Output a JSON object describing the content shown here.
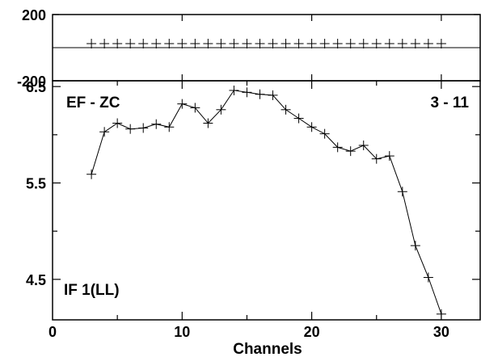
{
  "chart_data": [
    {
      "type": "scatter",
      "panel": "phase",
      "ylim": [
        -200,
        200
      ],
      "yticks": [
        "200",
        "-200"
      ],
      "xlim": [
        0,
        33
      ],
      "grid": false,
      "series": [
        {
          "marker": "+",
          "line": false,
          "points": [
            {
              "x": 3,
              "y": 0
            },
            {
              "x": 4,
              "y": 0
            },
            {
              "x": 5,
              "y": 0
            },
            {
              "x": 6,
              "y": 0
            },
            {
              "x": 7,
              "y": 0
            },
            {
              "x": 8,
              "y": 0
            },
            {
              "x": 9,
              "y": 0
            },
            {
              "x": 10,
              "y": 0
            },
            {
              "x": 11,
              "y": 0
            },
            {
              "x": 12,
              "y": 0
            },
            {
              "x": 13,
              "y": 0
            },
            {
              "x": 14,
              "y": 0
            },
            {
              "x": 15,
              "y": 0
            },
            {
              "x": 16,
              "y": 0
            },
            {
              "x": 17,
              "y": 0
            },
            {
              "x": 18,
              "y": 0
            },
            {
              "x": 19,
              "y": 0
            },
            {
              "x": 20,
              "y": 0
            },
            {
              "x": 21,
              "y": 0
            },
            {
              "x": 22,
              "y": 0
            },
            {
              "x": 23,
              "y": 0
            },
            {
              "x": 24,
              "y": 0
            },
            {
              "x": 25,
              "y": 0
            },
            {
              "x": 26,
              "y": 0
            },
            {
              "x": 27,
              "y": 0
            },
            {
              "x": 28,
              "y": 0
            },
            {
              "x": 29,
              "y": 0
            },
            {
              "x": 30,
              "y": 0
            }
          ]
        }
      ]
    },
    {
      "type": "line",
      "panel": "amplitude",
      "xlim": [
        0,
        33
      ],
      "ylim": [
        4.08,
        6.56
      ],
      "xticks": [
        "0",
        "10",
        "20",
        "30"
      ],
      "yticks": [
        "6.5",
        "5.5",
        "4.5"
      ],
      "xlabel": "Channels",
      "ylabel": "",
      "grid": false,
      "annotations": {
        "top_left": "EF - ZC",
        "top_right": "3 - 11",
        "bottom_left": "IF 1(LL)"
      },
      "series": [
        {
          "marker": "+",
          "line": true,
          "points": [
            {
              "x": 3,
              "y": 5.59
            },
            {
              "x": 4,
              "y": 6.03
            },
            {
              "x": 5,
              "y": 6.12
            },
            {
              "x": 6,
              "y": 6.06
            },
            {
              "x": 7,
              "y": 6.07
            },
            {
              "x": 8,
              "y": 6.11
            },
            {
              "x": 9,
              "y": 6.08
            },
            {
              "x": 10,
              "y": 6.32
            },
            {
              "x": 11,
              "y": 6.28
            },
            {
              "x": 12,
              "y": 6.12
            },
            {
              "x": 13,
              "y": 6.26
            },
            {
              "x": 14,
              "y": 6.46
            },
            {
              "x": 15,
              "y": 6.44
            },
            {
              "x": 16,
              "y": 6.42
            },
            {
              "x": 17,
              "y": 6.41
            },
            {
              "x": 18,
              "y": 6.26
            },
            {
              "x": 19,
              "y": 6.17
            },
            {
              "x": 20,
              "y": 6.08
            },
            {
              "x": 21,
              "y": 6.01
            },
            {
              "x": 22,
              "y": 5.87
            },
            {
              "x": 23,
              "y": 5.83
            },
            {
              "x": 24,
              "y": 5.89
            },
            {
              "x": 25,
              "y": 5.75
            },
            {
              "x": 26,
              "y": 5.78
            },
            {
              "x": 27,
              "y": 5.41
            },
            {
              "x": 28,
              "y": 4.85
            },
            {
              "x": 29,
              "y": 4.52
            },
            {
              "x": 30,
              "y": 4.14
            }
          ]
        }
      ]
    }
  ]
}
